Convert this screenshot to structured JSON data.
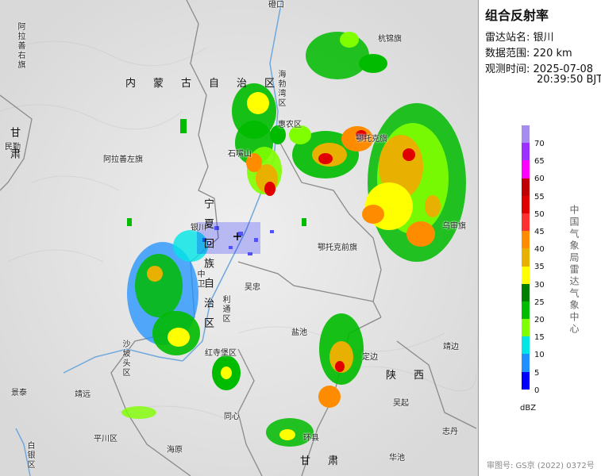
{
  "title": "组合反射率",
  "info": {
    "station_label": "雷达站名:",
    "station": "银川",
    "range_label": "数据范围:",
    "range": "220 km",
    "time_label": "观测时间:",
    "date": "2025-07-08",
    "time": "20:39:50 BJT"
  },
  "legend": {
    "ticks": [
      "70",
      "65",
      "60",
      "55",
      "50",
      "45",
      "40",
      "35",
      "30",
      "25",
      "20",
      "15",
      "10",
      "5",
      "0"
    ],
    "colors": [
      "#a78cf0",
      "#9b30ff",
      "#ff00ff",
      "#c00000",
      "#e00000",
      "#ff3030",
      "#ff8c00",
      "#e8b000",
      "#ffff00",
      "#007f00",
      "#00bb00",
      "#7fff00",
      "#00e6e6",
      "#1e90ff",
      "#0000ff"
    ],
    "unit": "dBZ"
  },
  "organization": "中国气象局雷达气象中心",
  "footer": "审图号: GS京 (2022) 0372号",
  "places": [
    {
      "name": "磴口"
    },
    {
      "name": "杭锦旗"
    },
    {
      "name": "阿拉善右旗"
    },
    {
      "name": "民勤"
    },
    {
      "name": "阿拉善左旗"
    },
    {
      "name": "石嘴山"
    },
    {
      "name": "鄂托克旗"
    },
    {
      "name": "鄂托克前旗"
    },
    {
      "name": "乌审旗"
    },
    {
      "name": "银川"
    },
    {
      "name": "吴忠"
    },
    {
      "name": "利通区"
    },
    {
      "name": "盐池"
    },
    {
      "name": "定边"
    },
    {
      "name": "靖边"
    },
    {
      "name": "吴起"
    },
    {
      "name": "志丹"
    },
    {
      "name": "环县"
    },
    {
      "name": "华池"
    },
    {
      "name": "景泰"
    },
    {
      "name": "靖远"
    },
    {
      "name": "白银区"
    },
    {
      "name": "平川区"
    },
    {
      "name": "海原"
    },
    {
      "name": "同心"
    },
    {
      "name": "红寺堡区"
    },
    {
      "name": "沙坡头区"
    },
    {
      "name": "中卫"
    },
    {
      "name": "海勃湾区"
    },
    {
      "name": "惠农区"
    }
  ],
  "regions": {
    "inner_mongolia": "内蒙古自治区",
    "ningxia": "宁夏回族自治区",
    "gansu": "甘肃",
    "shaanxi": "陕西",
    "gansu_west": "甘肃"
  }
}
